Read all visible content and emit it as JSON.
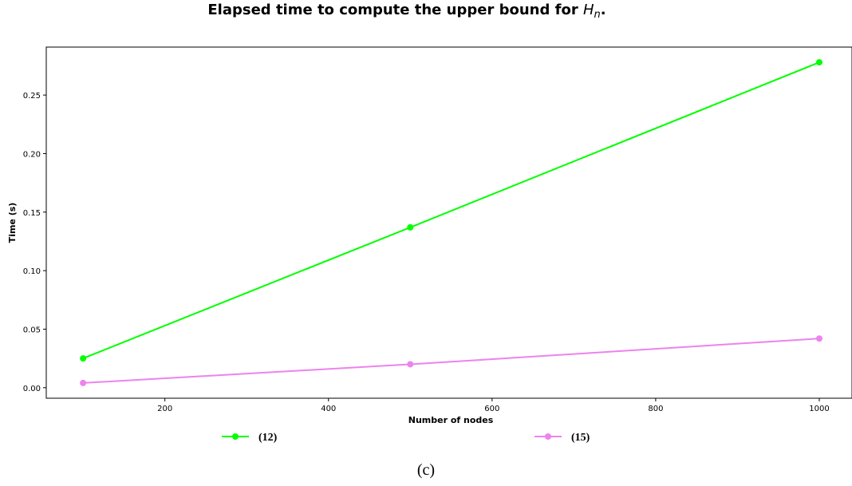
{
  "chart_data": {
    "type": "line",
    "title_text": "Elapsed time to compute the upper bound for ",
    "title_math": "H",
    "title_math_sub": "n",
    "title_suffix": ".",
    "xlabel": "Number of nodes",
    "ylabel": "Time (s)",
    "xlim": [
      55,
      1040
    ],
    "ylim": [
      -0.009,
      0.291
    ],
    "xticks": [
      200,
      400,
      600,
      800,
      1000
    ],
    "xtick_labels": [
      "200",
      "400",
      "600",
      "800",
      "1000"
    ],
    "yticks": [
      0.0,
      0.05,
      0.1,
      0.15,
      0.2,
      0.25
    ],
    "ytick_labels": [
      "0.00",
      "0.05",
      "0.10",
      "0.15",
      "0.20",
      "0.25"
    ],
    "grid": false,
    "legend_position": "bottom",
    "series": [
      {
        "name": "(12)",
        "color": "#00ff00",
        "x": [
          100,
          500,
          1000
        ],
        "y": [
          0.025,
          0.137,
          0.278
        ]
      },
      {
        "name": "(15)",
        "color": "#ee82ee",
        "x": [
          100,
          500,
          1000
        ],
        "y": [
          0.004,
          0.02,
          0.042
        ]
      }
    ]
  },
  "caption": "(c)"
}
